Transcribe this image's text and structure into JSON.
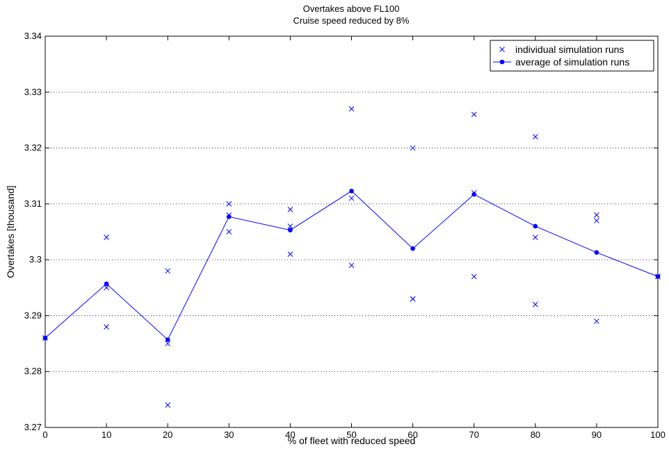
{
  "chart_data": {
    "type": "scatter",
    "title": "Overtakes above FL100",
    "subtitle": "Cruise speed reduced by 8%",
    "xlabel": "% of fleet with reduced speed",
    "ylabel": "Overtakes [thousand]",
    "xlim": [
      0,
      100
    ],
    "ylim": [
      3.27,
      3.34
    ],
    "xticks": [
      0,
      10,
      20,
      30,
      40,
      50,
      60,
      70,
      80,
      90,
      100
    ],
    "yticks": [
      3.27,
      3.28,
      3.29,
      3.3,
      3.31,
      3.32,
      3.33,
      3.34
    ],
    "ytick_labels": [
      "3.27",
      "3.28",
      "3.29",
      "3.3",
      "3.31",
      "3.32",
      "3.33",
      "3.34"
    ],
    "grid": "y-dotted",
    "legend_position": "top-right",
    "color": "#0000ff",
    "series": [
      {
        "name": "individual simulation runs",
        "marker": "x",
        "points": [
          [
            0,
            3.286
          ],
          [
            0,
            3.286
          ],
          [
            10,
            3.304
          ],
          [
            10,
            3.295
          ],
          [
            10,
            3.288
          ],
          [
            20,
            3.298
          ],
          [
            20,
            3.285
          ],
          [
            20,
            3.274
          ],
          [
            30,
            3.31
          ],
          [
            30,
            3.308
          ],
          [
            30,
            3.305
          ],
          [
            40,
            3.309
          ],
          [
            40,
            3.306
          ],
          [
            40,
            3.301
          ],
          [
            50,
            3.327
          ],
          [
            50,
            3.311
          ],
          [
            50,
            3.299
          ],
          [
            60,
            3.32
          ],
          [
            60,
            3.293
          ],
          [
            60,
            3.293
          ],
          [
            70,
            3.326
          ],
          [
            70,
            3.312
          ],
          [
            70,
            3.297
          ],
          [
            80,
            3.322
          ],
          [
            80,
            3.304
          ],
          [
            80,
            3.292
          ],
          [
            90,
            3.308
          ],
          [
            90,
            3.307
          ],
          [
            90,
            3.289
          ],
          [
            100,
            3.297
          ],
          [
            100,
            3.297
          ]
        ]
      },
      {
        "name": "average of simulation runs",
        "marker": "dot-line",
        "x": [
          0,
          10,
          20,
          30,
          40,
          50,
          60,
          70,
          80,
          90,
          100
        ],
        "values": [
          3.286,
          3.2957,
          3.2857,
          3.3077,
          3.3053,
          3.3123,
          3.302,
          3.3117,
          3.306,
          3.3013,
          3.297
        ]
      }
    ]
  }
}
